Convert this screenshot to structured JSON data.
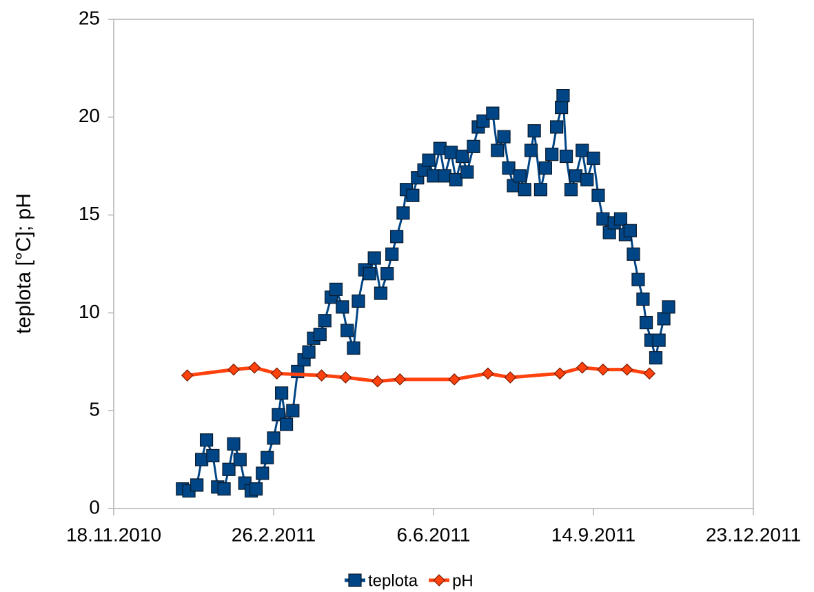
{
  "chart_data": {
    "type": "line",
    "y_label": "teplota [°C]; pH",
    "xlim": [
      "18.11.2010",
      "23.12.2011"
    ],
    "xticks": [
      "18.11.2010",
      "26.2.2011",
      "6.6.2011",
      "14.9.2011",
      "23.12.2011"
    ],
    "ylim": [
      0,
      25
    ],
    "yticks": [
      0,
      5,
      10,
      15,
      20,
      25
    ],
    "grid": false,
    "legend": "bottom",
    "series": [
      {
        "name": "teplota",
        "color": "#004586",
        "marker": "square",
        "x": [
          "31.12.2010",
          "4.1.2011",
          "9.1.2011",
          "12.1.2011",
          "15.1.2011",
          "19.1.2011",
          "22.1.2011",
          "26.1.2011",
          "29.1.2011",
          "1.2.2011",
          "5.2.2011",
          "8.2.2011",
          "12.2.2011",
          "15.2.2011",
          "19.2.2011",
          "22.2.2011",
          "26.2.2011",
          "1.3.2011",
          "3.3.2011",
          "6.3.2011",
          "10.3.2011",
          "13.3.2011",
          "17.3.2011",
          "20.3.2011",
          "23.3.2011",
          "27.3.2011",
          "30.3.2011",
          "3.4.2011",
          "6.4.2011",
          "10.4.2011",
          "13.4.2011",
          "17.4.2011",
          "20.4.2011",
          "24.4.2011",
          "27.4.2011",
          "30.4.2011",
          "4.5.2011",
          "8.5.2011",
          "11.5.2011",
          "14.5.2011",
          "18.5.2011",
          "20.5.2011",
          "24.5.2011",
          "27.5.2011",
          "31.5.2011",
          "3.6.2011",
          "6.6.2011",
          "10.6.2011",
          "13.6.2011",
          "17.6.2011",
          "20.6.2011",
          "24.6.2011",
          "27.6.2011",
          "1.7.2011",
          "4.7.2011",
          "7.7.2011",
          "13.7.2011",
          "16.7.2011",
          "20.7.2011",
          "23.7.2011",
          "26.7.2011",
          "30.7.2011",
          "2.8.2011",
          "6.8.2011",
          "8.8.2011",
          "12.8.2011",
          "15.8.2011",
          "19.8.2011",
          "22.8.2011",
          "25.8.2011",
          "26.8.2011",
          "28.8.2011",
          "31.8.2011",
          "3.9.2011",
          "7.9.2011",
          "10.9.2011",
          "14.9.2011",
          "17.9.2011",
          "20.9.2011",
          "24.9.2011",
          "27.9.2011",
          "1.10.2011",
          "4.10.2011",
          "7.10.2011",
          "9.10.2011",
          "12.10.2011",
          "15.10.2011",
          "17.10.2011",
          "20.10.2011",
          "23.10.2011",
          "25.10.2011",
          "28.10.2011",
          "31.10.2011"
        ],
        "values": [
          1.0,
          0.9,
          1.2,
          2.5,
          3.5,
          2.7,
          1.1,
          1.0,
          2.0,
          3.3,
          2.5,
          1.3,
          0.9,
          1.0,
          1.8,
          2.6,
          3.6,
          4.8,
          5.9,
          4.3,
          5.0,
          7.0,
          7.6,
          8.0,
          8.7,
          8.9,
          9.6,
          10.8,
          11.2,
          10.3,
          9.1,
          8.2,
          10.6,
          12.2,
          12.0,
          12.8,
          11.0,
          12.0,
          13.0,
          13.9,
          15.1,
          16.3,
          16.0,
          16.9,
          17.3,
          17.8,
          17.0,
          18.4,
          17.0,
          18.2,
          16.8,
          18.0,
          17.2,
          18.5,
          19.5,
          19.8,
          20.2,
          18.3,
          19.0,
          17.4,
          16.5,
          17.0,
          16.3,
          18.3,
          19.3,
          16.3,
          17.4,
          18.1,
          19.5,
          20.5,
          21.1,
          18.0,
          16.3,
          17.0,
          18.3,
          16.8,
          17.9,
          16.0,
          14.8,
          14.1,
          14.6,
          14.8,
          14.0,
          14.2,
          13.0,
          11.7,
          10.7,
          9.5,
          8.6,
          7.7,
          8.6,
          9.7,
          10.3
        ]
      },
      {
        "name": "pH",
        "color": "#ff420e",
        "marker": "diamond",
        "x": [
          "3.1.2011",
          "1.2.2011",
          "14.2.2011",
          "28.2.2011",
          "28.3.2011",
          "12.4.2011",
          "2.5.2011",
          "16.5.2011",
          "19.6.2011",
          "10.7.2011",
          "24.7.2011",
          "24.8.2011",
          "7.9.2011",
          "20.9.2011",
          "5.10.2011",
          "19.10.2011"
        ],
        "values": [
          6.8,
          7.1,
          7.2,
          6.9,
          6.8,
          6.7,
          6.5,
          6.6,
          6.6,
          6.9,
          6.7,
          6.9,
          7.2,
          7.1,
          7.1,
          6.9
        ]
      }
    ]
  }
}
